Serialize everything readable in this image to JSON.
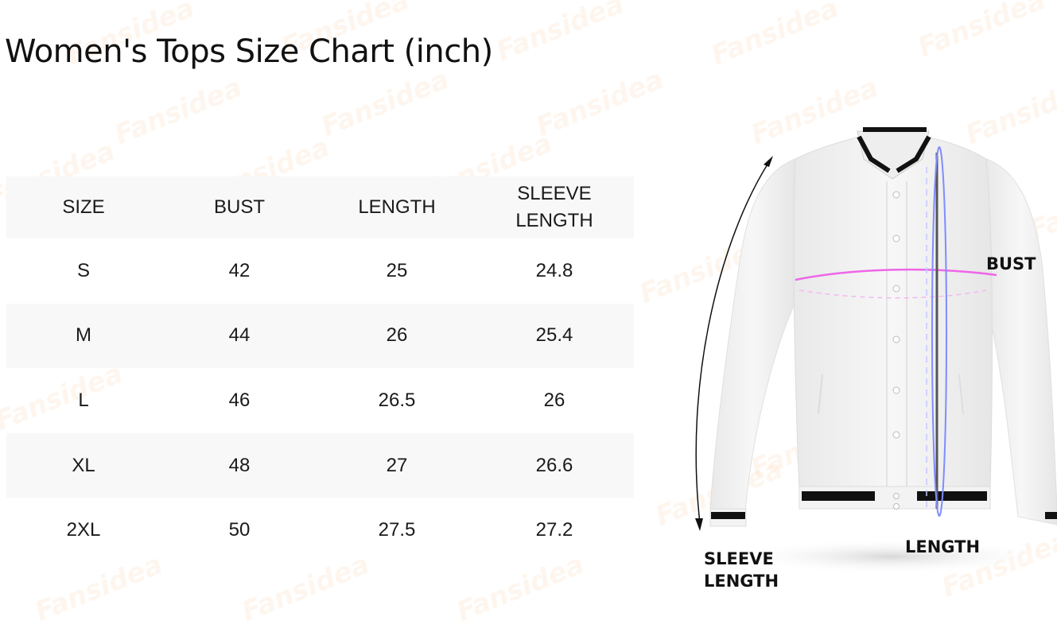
{
  "title": "Women's Tops Size Chart  (inch)",
  "watermark": "Fansidea",
  "table": {
    "headers": [
      "SIZE",
      "BUST",
      "LENGTH",
      "SLEEVE\nLENGTH"
    ],
    "header_sleeve_line1": "SLEEVE",
    "header_sleeve_line2": "LENGTH",
    "rows": [
      [
        "S",
        "42",
        "25",
        "24.8"
      ],
      [
        "M",
        "44",
        "26",
        "25.4"
      ],
      [
        "L",
        "46",
        "26.5",
        "26"
      ],
      [
        "XL",
        "48",
        "27",
        "26.6"
      ],
      [
        "2XL",
        "50",
        "27.5",
        "27.2"
      ]
    ]
  },
  "diagram": {
    "bust_label": "BUST",
    "length_label": "LENGTH",
    "sleeve_label_line1": "SLEEVE",
    "sleeve_label_line2": "LENGTH",
    "colors": {
      "bust_line": "#ee66e8",
      "length_line": "#7f8cff",
      "row_shade": "#f8f8f8"
    }
  }
}
